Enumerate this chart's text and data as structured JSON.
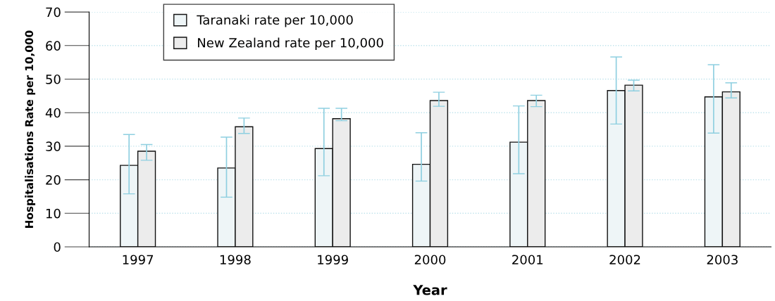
{
  "chart_data": {
    "type": "bar",
    "xlabel": "Year",
    "ylabel": "Hospitalisations Rate per 10,000",
    "categories": [
      "1997",
      "1998",
      "1999",
      "2000",
      "2001",
      "2002",
      "2003"
    ],
    "series": [
      {
        "name": "Taranaki rate per 10,000",
        "color": "#eef5f7",
        "values": [
          24.3,
          23.5,
          29.3,
          24.6,
          31.2,
          46.6,
          44.7
        ],
        "errors": [
          [
            15.8,
            33.5
          ],
          [
            14.8,
            32.7
          ],
          [
            21.2,
            41.3
          ],
          [
            19.6,
            34.0
          ],
          [
            21.8,
            42.0
          ],
          [
            36.6,
            56.6
          ],
          [
            33.9,
            54.3
          ]
        ]
      },
      {
        "name": "New Zealand rate per 10,000",
        "color": "#ececec",
        "values": [
          28.5,
          35.8,
          38.2,
          43.6,
          43.6,
          48.2,
          46.2
        ],
        "errors": [
          [
            25.8,
            30.5
          ],
          [
            33.8,
            38.4
          ],
          [
            37.6,
            41.3
          ],
          [
            41.9,
            46.1
          ],
          [
            41.8,
            45.2
          ],
          [
            46.5,
            49.7
          ],
          [
            44.4,
            48.9
          ]
        ]
      }
    ],
    "ylim": [
      0,
      70
    ],
    "yticks": [
      0,
      10,
      20,
      30,
      40,
      50,
      60,
      70
    ],
    "grid": "y",
    "legend": "top left"
  }
}
